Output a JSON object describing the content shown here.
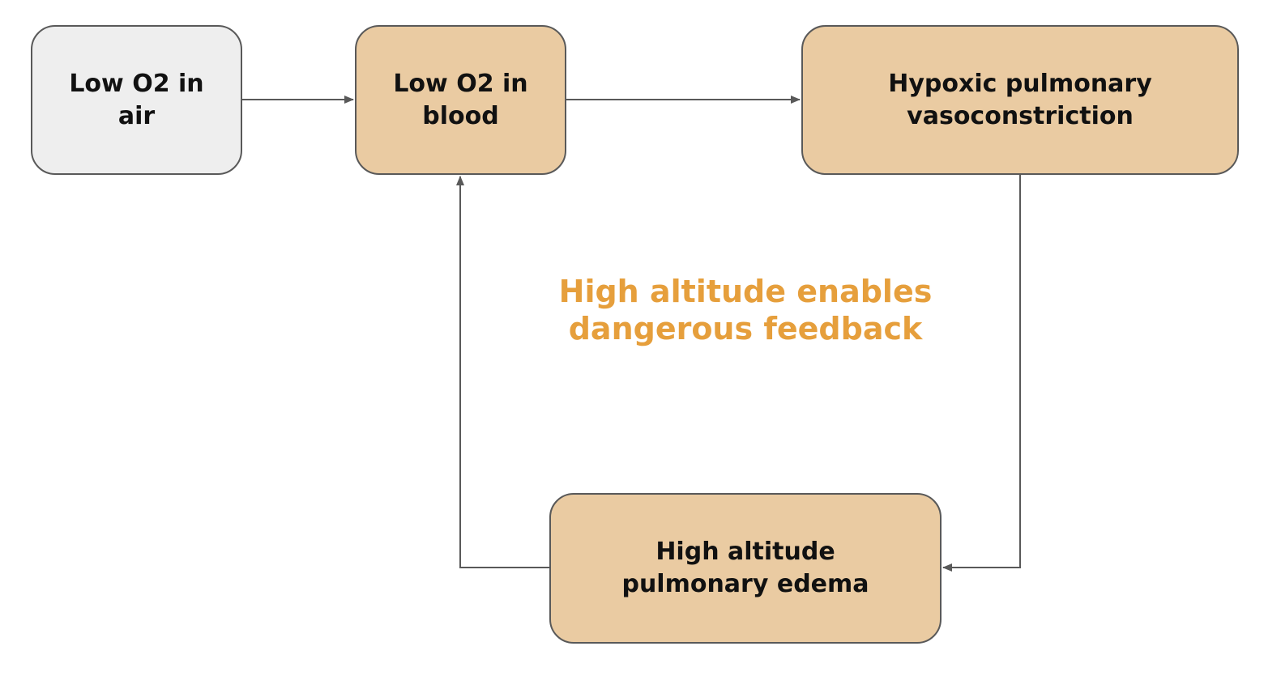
{
  "colors": {
    "neutral_fill": "#eeeeee",
    "highlight_fill": "#eacba2",
    "border": "#595959",
    "connector": "#595959",
    "note_text": "#e69f3c"
  },
  "nodes": {
    "low_o2_air": {
      "line1": "Low O2 in",
      "line2": "air"
    },
    "low_o2_blood": {
      "line1": "Low O2 in",
      "line2": "blood"
    },
    "hpv": {
      "line1": "Hypoxic pulmonary",
      "line2": "vasoconstriction"
    },
    "hape": {
      "line1": "High altitude",
      "line2": "pulmonary edema"
    }
  },
  "note": {
    "line1": "High altitude enables",
    "line2": "dangerous feedback"
  },
  "edges": [
    {
      "from": "Low O2 in air",
      "to": "Low O2 in blood"
    },
    {
      "from": "Low O2 in blood",
      "to": "Hypoxic pulmonary vasoconstriction"
    },
    {
      "from": "Hypoxic pulmonary vasoconstriction",
      "to": "High altitude pulmonary edema"
    },
    {
      "from": "High altitude pulmonary edema",
      "to": "Low O2 in blood"
    }
  ]
}
